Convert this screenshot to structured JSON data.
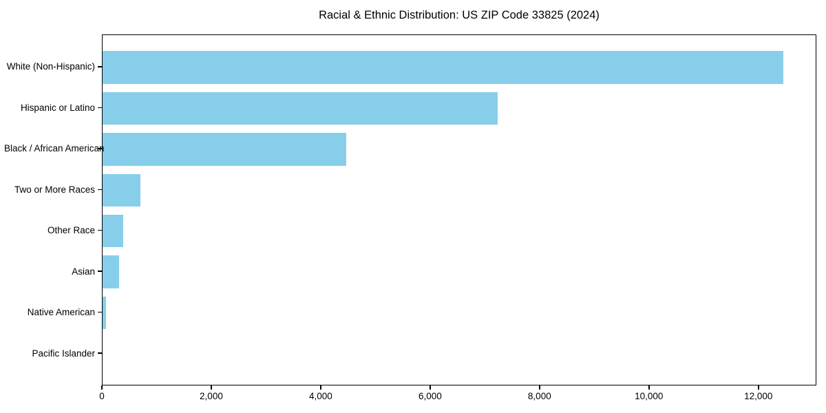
{
  "chart_data": {
    "type": "bar",
    "orientation": "horizontal",
    "title": "Racial & Ethnic Distribution: US ZIP Code 33825 (2024)",
    "categories": [
      "White (Non-Hispanic)",
      "Hispanic or Latino",
      "Black / African American",
      "Two or More Races",
      "Other Race",
      "Asian",
      "Native American",
      "Pacific Islander"
    ],
    "values": [
      12440,
      7220,
      4450,
      690,
      380,
      300,
      60,
      0
    ],
    "xlabel": "",
    "ylabel": "",
    "xlim": [
      0,
      13060
    ],
    "xticks": [
      0,
      2000,
      4000,
      6000,
      8000,
      10000,
      12000
    ],
    "xtick_labels": [
      "0",
      "2,000",
      "4,000",
      "6,000",
      "8,000",
      "10,000",
      "12,000"
    ],
    "bar_color": "#87CEEB",
    "spine_color": "#000000",
    "text_color": "#000000",
    "grid": false,
    "legend": null
  }
}
